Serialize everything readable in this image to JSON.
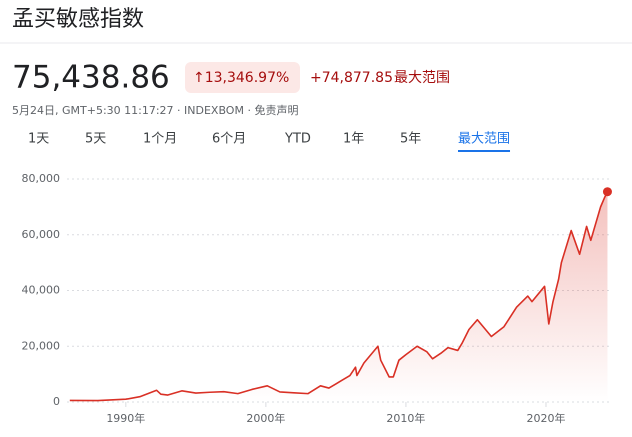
{
  "header": {
    "title": "孟买敏感指数",
    "price": "75,438.86",
    "change_percent": "↑13,346.97%",
    "change_value": "+74,877.85",
    "change_range": "最大范围",
    "meta": "5月24日, GMT+5:30 11:17:27 · INDEXBOM · 免责声明"
  },
  "tabs": [
    "1天",
    "5天",
    "1个月",
    "6个月",
    "YTD",
    "1年",
    "5年",
    "最大范围"
  ],
  "selected_tab": 7,
  "chart_data": {
    "type": "line",
    "color": "#d93025",
    "grid": true,
    "xlim": [
      1985.8,
      2024.5
    ],
    "ylim": [
      0,
      80000
    ],
    "xticks": [
      {
        "value": 1990,
        "label": "1990年"
      },
      {
        "value": 2000,
        "label": "2000年"
      },
      {
        "value": 2010,
        "label": "2010年"
      },
      {
        "value": 2020,
        "label": "2020年"
      }
    ],
    "yticks": [
      0,
      {
        "value": 20000,
        "label": "20,000"
      },
      {
        "value": 40000,
        "label": "40,000"
      },
      {
        "value": 60000,
        "label": "60,000"
      },
      {
        "value": 80000,
        "label": "80,000"
      }
    ],
    "x": [
      1986,
      1988,
      1990,
      1991,
      1992.2,
      1992.5,
      1993,
      1994,
      1995,
      1996,
      1997,
      1998,
      1999,
      2000.1,
      2001,
      2002,
      2003,
      2003.9,
      2004.5,
      2005,
      2006,
      2006.4,
      2006.5,
      2007,
      2008,
      2008.2,
      2008.8,
      2009.1,
      2009.5,
      2010,
      2010.8,
      2011.5,
      2011.9,
      2012.5,
      2013,
      2013.7,
      2014,
      2014.5,
      2015.1,
      2016.1,
      2017,
      2017.9,
      2018.7,
      2019,
      2019.9,
      2020.2,
      2020.5,
      2020.9,
      2021.1,
      2021.8,
      2022.4,
      2022.9,
      2023.2,
      2023.9,
      2024.2,
      2024.39
    ],
    "values": [
      550,
      500,
      1000,
      1900,
      4200,
      2800,
      2500,
      4000,
      3200,
      3500,
      3700,
      3000,
      4500,
      5800,
      3600,
      3300,
      3000,
      5800,
      5000,
      6500,
      9500,
      12500,
      9500,
      14000,
      20000,
      15000,
      9000,
      9000,
      15000,
      17000,
      20000,
      18000,
      15500,
      17500,
      19500,
      18500,
      21000,
      26000,
      29500,
      23500,
      27000,
      34000,
      38000,
      36000,
      41500,
      28000,
      36000,
      44000,
      50000,
      61500,
      53000,
      63000,
      58000,
      70000,
      73500,
      75438.86
    ]
  }
}
